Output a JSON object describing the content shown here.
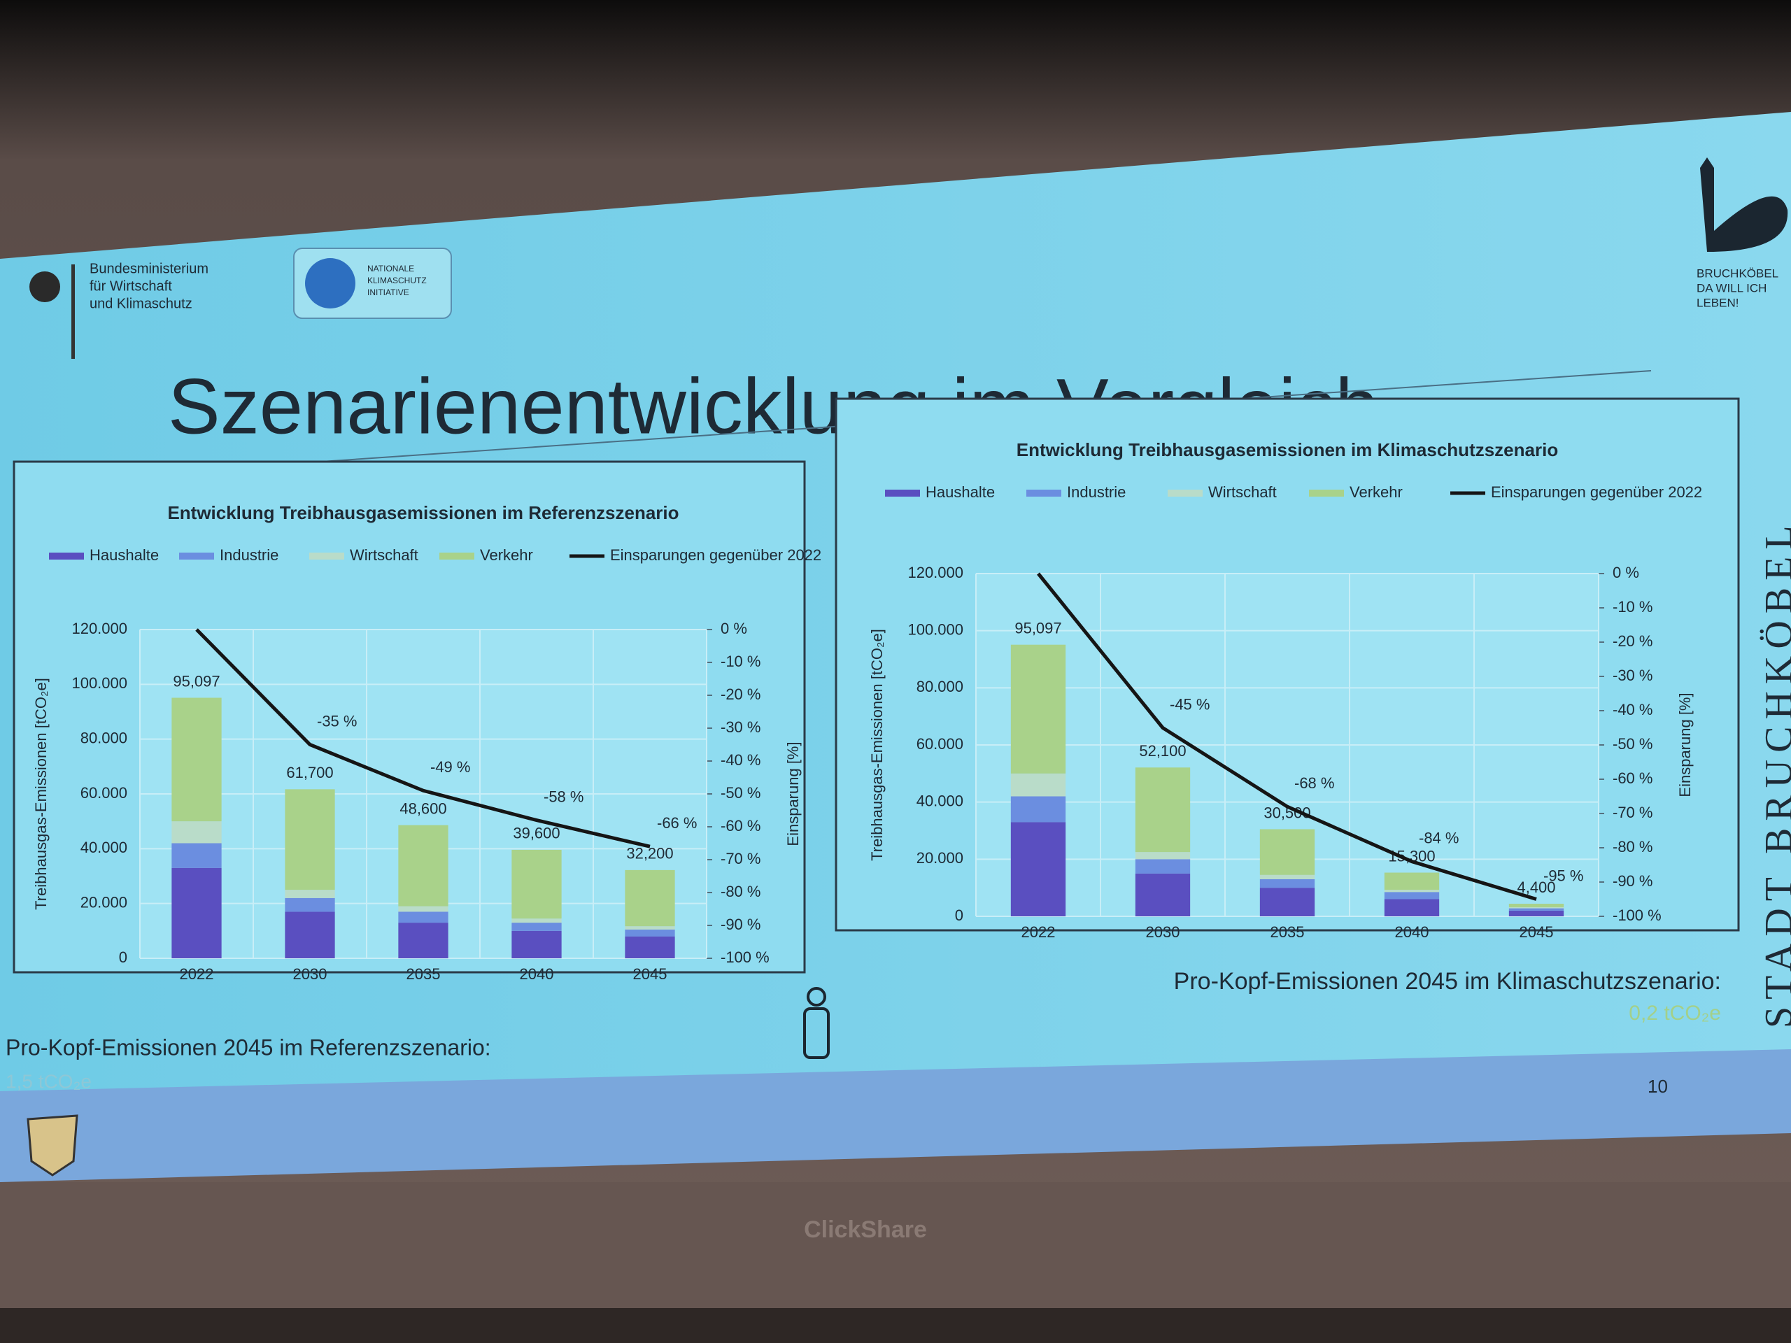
{
  "slide": {
    "title": "Szenarienentwicklung im Vergleich",
    "ministry": [
      "Bundesministerium",
      "für Wirtschaft",
      "und Klimaschutz"
    ],
    "initiative": [
      "NATIONALE",
      "KLIMASCHUTZ",
      "INITIATIVE"
    ],
    "city_logo": [
      "BRUCHKÖBEL",
      "DA WILL ICH",
      "LEBEN!"
    ],
    "city_vertical": "STADT BRUCHKÖBEL",
    "per_capita_reference": "Pro-Kopf-Emissionen 2045 im Referenzszenario:",
    "per_capita_reference_value": "1,5 tCO₂e",
    "per_capita_climate": "Pro-Kopf-Emissionen 2045 im Klimaschutzszenario:",
    "per_capita_climate_value": "0,2 tCO₂e",
    "page_number": "10",
    "device": "ClickShare"
  },
  "chart_data": [
    {
      "type": "bar",
      "stacked": true,
      "title": "Entwicklung Treibhausgasemissionen im Referenzszenario",
      "ylabel": "Treibhausgas-Emissionen [tCO₂e]",
      "y2label": "Einsparung [%]",
      "categories": [
        "2022",
        "2030",
        "2035",
        "2040",
        "2045"
      ],
      "series": [
        {
          "name": "Haushalte",
          "color": "#5a4fc0",
          "values": [
            33000,
            17000,
            13000,
            10000,
            8000
          ]
        },
        {
          "name": "Industrie",
          "color": "#6b8ee0",
          "values": [
            9000,
            5000,
            4000,
            3000,
            2500
          ]
        },
        {
          "name": "Wirtschaft",
          "color": "#b9dcc9",
          "values": [
            8000,
            3000,
            2000,
            1500,
            1200
          ]
        },
        {
          "name": "Verkehr",
          "color": "#a9d28a",
          "values": [
            45097,
            36700,
            29600,
            25100,
            20500
          ]
        },
        {
          "name": "Einsparungen gegenüber 2022",
          "color": "#151515",
          "type": "line",
          "axis": "y2",
          "values": [
            0,
            -35,
            -49,
            -58,
            -66
          ],
          "value_labels": [
            null,
            "-35 %",
            "-49 %",
            "-58 %",
            "-66 %"
          ]
        }
      ],
      "totals": {
        "values": [
          95097,
          61700,
          48600,
          39600,
          32200
        ],
        "value_labels": [
          "95,097",
          "61,700",
          "48,600",
          "39,600",
          "32,200"
        ]
      },
      "ylim": [
        0,
        120000
      ],
      "yticks": [
        0,
        {
          "value": 20000,
          "label": "20.000"
        },
        {
          "value": 40000,
          "label": "40.000"
        },
        {
          "value": 60000,
          "label": "60.000"
        },
        {
          "value": 80000,
          "label": "80.000"
        },
        {
          "value": 100000,
          "label": "100.000"
        },
        {
          "value": 120000,
          "label": "120.000"
        }
      ],
      "y2lim": [
        -100,
        0
      ],
      "y2ticks": [
        {
          "value": 0,
          "label": "0 %"
        },
        {
          "value": -10,
          "label": "-10 %"
        },
        {
          "value": -20,
          "label": "-20 %"
        },
        {
          "value": -30,
          "label": "-30 %"
        },
        {
          "value": -40,
          "label": "-40 %"
        },
        {
          "value": -50,
          "label": "-50 %"
        },
        {
          "value": -60,
          "label": "-60 %"
        },
        {
          "value": -70,
          "label": "-70 %"
        },
        {
          "value": -80,
          "label": "-80 %"
        },
        {
          "value": -90,
          "label": "-90 %"
        },
        {
          "value": -100,
          "label": "-100 %"
        }
      ],
      "grid": true
    },
    {
      "type": "bar",
      "stacked": true,
      "title": "Entwicklung Treibhausgasemissionen im Klimaschutzszenario",
      "ylabel": "Treibhausgas-Emissionen [tCO₂e]",
      "y2label": "Einsparung [%]",
      "categories": [
        "2022",
        "2030",
        "2035",
        "2040",
        "2045"
      ],
      "series": [
        {
          "name": "Haushalte",
          "color": "#5a4fc0",
          "values": [
            33000,
            15000,
            10000,
            6000,
            2000
          ]
        },
        {
          "name": "Industrie",
          "color": "#6b8ee0",
          "values": [
            9000,
            5000,
            3000,
            2500,
            800
          ]
        },
        {
          "name": "Wirtschaft",
          "color": "#b9dcc9",
          "values": [
            8000,
            2500,
            1500,
            800,
            400
          ]
        },
        {
          "name": "Verkehr",
          "color": "#a9d28a",
          "values": [
            45097,
            29600,
            16000,
            6000,
            1200
          ]
        },
        {
          "name": "Einsparungen gegenüber 2022",
          "color": "#151515",
          "type": "line",
          "axis": "y2",
          "values": [
            0,
            -45,
            -68,
            -84,
            -95
          ],
          "value_labels": [
            null,
            "-45 %",
            "-68 %",
            "-84 %",
            "-95 %"
          ]
        }
      ],
      "totals": {
        "values": [
          95097,
          52100,
          30500,
          15300,
          4400
        ],
        "value_labels": [
          "95,097",
          "52,100",
          "30,500",
          "15,300",
          "4,400"
        ]
      },
      "ylim": [
        0,
        120000
      ],
      "yticks": [
        0,
        {
          "value": 20000,
          "label": "20.000"
        },
        {
          "value": 40000,
          "label": "40.000"
        },
        {
          "value": 60000,
          "label": "60.000"
        },
        {
          "value": 80000,
          "label": "80.000"
        },
        {
          "value": 100000,
          "label": "100.000"
        },
        {
          "value": 120000,
          "label": "120.000"
        }
      ],
      "y2lim": [
        -100,
        0
      ],
      "y2ticks": [
        {
          "value": 0,
          "label": "0 %"
        },
        {
          "value": -10,
          "label": "-10 %"
        },
        {
          "value": -20,
          "label": "-20 %"
        },
        {
          "value": -30,
          "label": "-30 %"
        },
        {
          "value": -40,
          "label": "-40 %"
        },
        {
          "value": -50,
          "label": "-50 %"
        },
        {
          "value": -60,
          "label": "-60 %"
        },
        {
          "value": -70,
          "label": "-70 %"
        },
        {
          "value": -80,
          "label": "-80 %"
        },
        {
          "value": -90,
          "label": "-90 %"
        },
        {
          "value": -100,
          "label": "-100 %"
        }
      ],
      "grid": true
    }
  ]
}
